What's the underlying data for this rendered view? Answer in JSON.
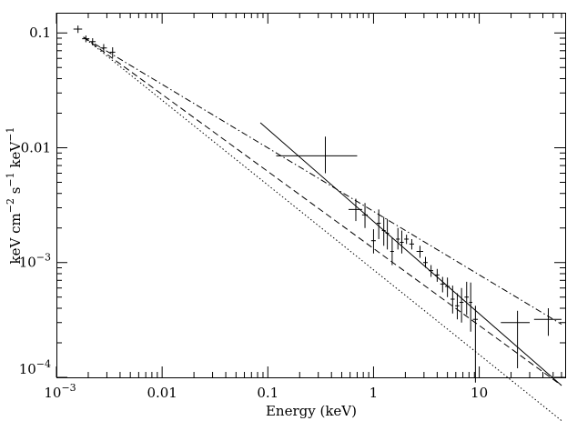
{
  "chart_data": {
    "type": "scatter",
    "title": "",
    "xlabel": "Energy (keV)",
    "ylabel_parts": [
      "keV cm",
      "−2",
      " s",
      "−1",
      " keV",
      "−1"
    ],
    "xscale": "log",
    "yscale": "log",
    "xlim": [
      0.001,
      65
    ],
    "ylim": [
      0.0001,
      0.15
    ],
    "grid": false,
    "x_tick_labels": [
      {
        "value": 0.001,
        "base": "10",
        "exp": "−3"
      },
      {
        "value": 0.01,
        "text": "0.01"
      },
      {
        "value": 0.1,
        "text": "0.1"
      },
      {
        "value": 1,
        "text": "1"
      },
      {
        "value": 10,
        "text": "10"
      }
    ],
    "y_tick_labels": [
      {
        "value": 0.0001,
        "base": "10",
        "exp": "−4"
      },
      {
        "value": 0.001,
        "base": "10",
        "exp": "−3"
      },
      {
        "value": 0.01,
        "text": "0.01"
      },
      {
        "value": 0.1,
        "text": "0.1"
      }
    ],
    "models": [
      {
        "style": "solid",
        "x": [
          0.085,
          60
        ],
        "y": [
          0.0165,
          8.5e-05
        ]
      },
      {
        "style": "dashdot",
        "x": [
          0.0018,
          60
        ],
        "y": [
          0.092,
          0.00029
        ]
      },
      {
        "style": "dashed",
        "x": [
          0.0018,
          60
        ],
        "y": [
          0.092,
          8.5e-05
        ]
      },
      {
        "style": "dotted",
        "x": [
          0.0018,
          60
        ],
        "y": [
          0.092,
          4.2e-05
        ]
      }
    ],
    "data_points": [
      {
        "x": 0.0016,
        "y": 0.108,
        "xerr": [
          0.00015,
          0.00015
        ],
        "yerr": [
          0.008,
          0.008
        ]
      },
      {
        "x": 0.0019,
        "y": 0.089,
        "xerr": [
          0.00015,
          0.00015
        ],
        "yerr": [
          0.006,
          0.006
        ]
      },
      {
        "x": 0.0022,
        "y": 0.084,
        "xerr": [
          0.00015,
          0.00015
        ],
        "yerr": [
          0.006,
          0.006
        ]
      },
      {
        "x": 0.0028,
        "y": 0.074,
        "xerr": [
          0.0002,
          0.0002
        ],
        "yerr": [
          0.006,
          0.006
        ]
      },
      {
        "x": 0.0034,
        "y": 0.068,
        "xerr": [
          0.0002,
          0.0002
        ],
        "yerr": [
          0.007,
          0.007
        ]
      },
      {
        "x": 0.35,
        "y": 0.0085,
        "xerr": [
          0.23,
          0.35
        ],
        "yerr": [
          0.0025,
          0.004
        ]
      },
      {
        "x": 0.68,
        "y": 0.0029,
        "xerr": [
          0.1,
          0.1
        ],
        "yerr": [
          0.0006,
          0.0007
        ]
      },
      {
        "x": 0.83,
        "y": 0.0026,
        "xerr": [
          0.05,
          0.05
        ],
        "yerr": [
          0.0006,
          0.0007
        ]
      },
      {
        "x": 1.0,
        "y": 0.00155,
        "xerr": [
          0.05,
          0.05
        ],
        "yerr": [
          0.00035,
          0.0004
        ]
      },
      {
        "x": 1.12,
        "y": 0.0022,
        "xerr": [
          0.05,
          0.05
        ],
        "yerr": [
          0.0006,
          0.0007
        ]
      },
      {
        "x": 1.25,
        "y": 0.0019,
        "xerr": [
          0.05,
          0.05
        ],
        "yerr": [
          0.0005,
          0.0006
        ]
      },
      {
        "x": 1.35,
        "y": 0.0018,
        "xerr": [
          0.05,
          0.05
        ],
        "yerr": [
          0.0005,
          0.0006
        ]
      },
      {
        "x": 1.5,
        "y": 0.00125,
        "xerr": [
          0.06,
          0.06
        ],
        "yerr": [
          0.0003,
          0.0004
        ]
      },
      {
        "x": 1.7,
        "y": 0.0016,
        "xerr": [
          0.07,
          0.07
        ],
        "yerr": [
          0.0003,
          0.0004
        ]
      },
      {
        "x": 1.85,
        "y": 0.0015,
        "xerr": [
          0.08,
          0.08
        ],
        "yerr": [
          0.0003,
          0.0004
        ]
      },
      {
        "x": 2.05,
        "y": 0.0016,
        "xerr": [
          0.1,
          0.1
        ],
        "yerr": [
          0.00015,
          0.00015
        ]
      },
      {
        "x": 2.3,
        "y": 0.00145,
        "xerr": [
          0.12,
          0.12
        ],
        "yerr": [
          0.00015,
          0.00015
        ]
      },
      {
        "x": 2.75,
        "y": 0.00125,
        "xerr": [
          0.2,
          0.2
        ],
        "yerr": [
          0.00015,
          0.00015
        ]
      },
      {
        "x": 3.1,
        "y": 0.001,
        "xerr": [
          0.15,
          0.15
        ],
        "yerr": [
          0.0001,
          0.00012
        ]
      },
      {
        "x": 3.5,
        "y": 0.00085,
        "xerr": [
          0.17,
          0.17
        ],
        "yerr": [
          0.0001,
          0.0001
        ]
      },
      {
        "x": 4.0,
        "y": 0.00078,
        "xerr": [
          0.2,
          0.2
        ],
        "yerr": [
          0.0001,
          0.0001
        ]
      },
      {
        "x": 4.5,
        "y": 0.00065,
        "xerr": [
          0.22,
          0.22
        ],
        "yerr": [
          0.0001,
          0.0001
        ]
      },
      {
        "x": 5.0,
        "y": 0.00062,
        "xerr": [
          0.25,
          0.25
        ],
        "yerr": [
          0.00012,
          0.00012
        ]
      },
      {
        "x": 5.6,
        "y": 0.00048,
        "xerr": [
          0.25,
          0.25
        ],
        "yerr": [
          0.00012,
          0.00015
        ]
      },
      {
        "x": 6.2,
        "y": 0.00042,
        "xerr": [
          0.28,
          0.28
        ],
        "yerr": [
          0.0001,
          0.00012
        ]
      },
      {
        "x": 6.8,
        "y": 0.00045,
        "xerr": [
          0.3,
          0.3
        ],
        "yerr": [
          0.00015,
          0.00015
        ]
      },
      {
        "x": 7.6,
        "y": 0.0005,
        "xerr": [
          0.35,
          0.35
        ],
        "yerr": [
          0.00015,
          0.00018
        ]
      },
      {
        "x": 8.3,
        "y": 0.00045,
        "xerr": [
          0.3,
          0.3
        ],
        "yerr": [
          0.0002,
          0.00022
        ]
      },
      {
        "x": 9.2,
        "y": 0.00032,
        "xerr": [
          0.5,
          0.5
        ],
        "yerr": [
          0.00023,
          0.0001
        ]
      },
      {
        "x": 23,
        "y": 0.0003,
        "xerr": [
          7,
          7
        ],
        "yerr": [
          0.00018,
          8e-05
        ]
      },
      {
        "x": 45,
        "y": 0.00032,
        "xerr": [
          12,
          15
        ],
        "yerr": [
          9e-05,
          8e-05
        ]
      }
    ]
  }
}
